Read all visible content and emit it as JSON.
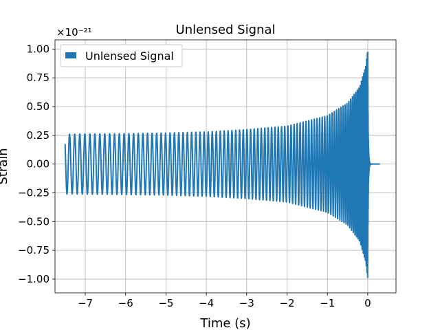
{
  "chart_data": {
    "type": "line",
    "title": "Unlensed Signal",
    "xlabel": "Time (s)",
    "ylabel": "Strain",
    "y_scale_label": "×10⁻²¹",
    "xlim": [
      -7.75,
      0.7
    ],
    "ylim": [
      -1.12,
      1.08
    ],
    "x_ticks": [
      -7,
      -6,
      -5,
      -4,
      -3,
      -2,
      -1,
      0
    ],
    "x_tick_labels": [
      "−7",
      "−6",
      "−5",
      "−4",
      "−3",
      "−2",
      "−1",
      "0"
    ],
    "y_ticks": [
      -1.0,
      -0.75,
      -0.5,
      -0.25,
      0.0,
      0.25,
      0.5,
      0.75,
      1.0
    ],
    "y_tick_labels": [
      "−1.00",
      "−0.75",
      "−0.50",
      "−0.25",
      "0.00",
      "0.25",
      "0.50",
      "0.75",
      "1.00"
    ],
    "grid": true,
    "legend_position": "top-left",
    "series": [
      {
        "name": "Unlensed Signal",
        "color": "#1f77b4",
        "kind": "chirp-waveform",
        "t_start": -7.5,
        "t_merger": 0.0,
        "t_end": 0.3,
        "amplitude_envelope": [
          [
            -7.5,
            0.26
          ],
          [
            -6.0,
            0.265
          ],
          [
            -5.0,
            0.27
          ],
          [
            -4.0,
            0.28
          ],
          [
            -3.0,
            0.3
          ],
          [
            -2.0,
            0.33
          ],
          [
            -1.0,
            0.42
          ],
          [
            -0.5,
            0.53
          ],
          [
            -0.2,
            0.67
          ],
          [
            -0.05,
            0.85
          ],
          [
            0.0,
            1.0
          ],
          [
            0.05,
            0.05
          ],
          [
            0.3,
            0.0
          ]
        ]
      }
    ]
  }
}
